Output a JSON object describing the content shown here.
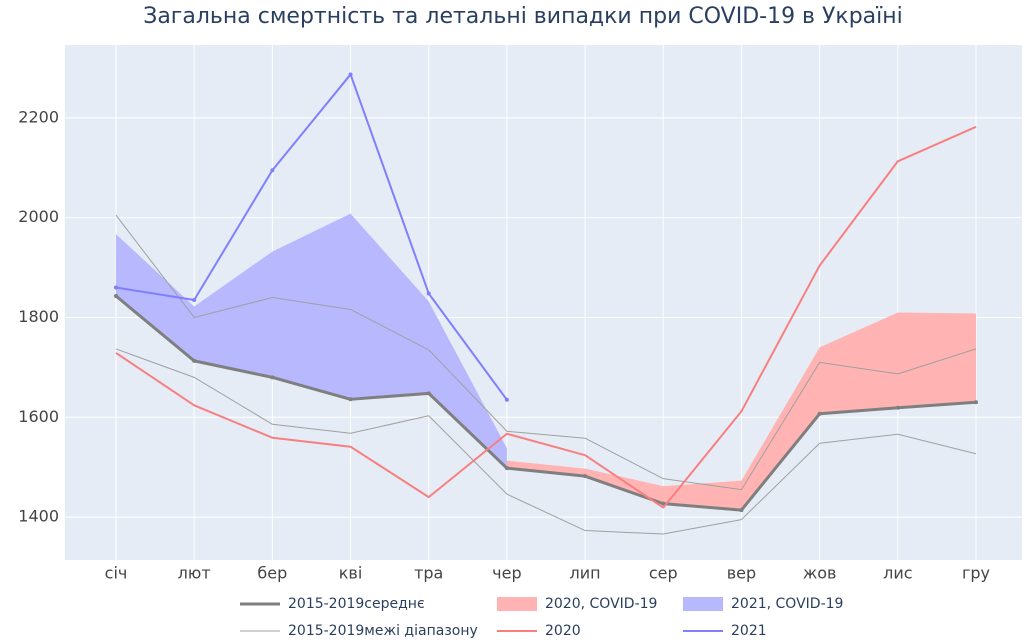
{
  "chart_data": {
    "type": "line",
    "title": "Загальна смертність та летальні випадки при COVID-19 в Україні",
    "categories": [
      "січ",
      "лют",
      "бер",
      "кві",
      "тра",
      "чер",
      "лип",
      "сер",
      "вер",
      "жов",
      "лис",
      "гру"
    ],
    "ylim": [
      1314,
      2346
    ],
    "yticks": [
      1400,
      1600,
      1800,
      2000,
      2200
    ],
    "grid": true,
    "series": [
      {
        "name": "2015-2019середнє",
        "color": "#7f7f7f",
        "kind": "line",
        "width": 3,
        "markers": true,
        "values": [
          1843,
          1713,
          1680,
          1636,
          1648,
          1498,
          1482,
          1427,
          1414,
          1607,
          1619,
          1630
        ]
      },
      {
        "name": "2020, COVID-19",
        "color": "#ffb3b3",
        "kind": "stacked-area",
        "values": [
          null,
          null,
          null,
          null,
          null,
          15,
          15,
          35,
          59,
          133,
          191,
          178
        ]
      },
      {
        "name": "2021, COVID-19",
        "color": "#b8b8ff",
        "kind": "stacked-area",
        "values": [
          124,
          109,
          252,
          372,
          184,
          40,
          null,
          null,
          null,
          null,
          null,
          null
        ]
      },
      {
        "name": "2015-2019межі діапазону",
        "color": "#a0a0a0",
        "kind": "range",
        "width": 1,
        "upper": [
          2005,
          1800,
          1840,
          1816,
          1735,
          1572,
          1558,
          1477,
          1455,
          1710,
          1687,
          1737
        ],
        "lower": [
          1737,
          1680,
          1586,
          1568,
          1603,
          1446,
          1373,
          1366,
          1395,
          1548,
          1566,
          1527
        ]
      },
      {
        "name": "2020",
        "color": "#f87f7f",
        "kind": "line",
        "width": 2,
        "markers": false,
        "values": [
          1729,
          1624,
          1559,
          1541,
          1440,
          1567,
          1524,
          1419,
          1612,
          1904,
          2113,
          2182
        ]
      },
      {
        "name": "2021",
        "color": "#7f7fff",
        "kind": "line",
        "width": 2,
        "markers": true,
        "values": [
          1860,
          1835,
          2095,
          2287,
          1848,
          1635,
          null,
          null,
          null,
          null,
          null,
          null
        ]
      }
    ]
  }
}
